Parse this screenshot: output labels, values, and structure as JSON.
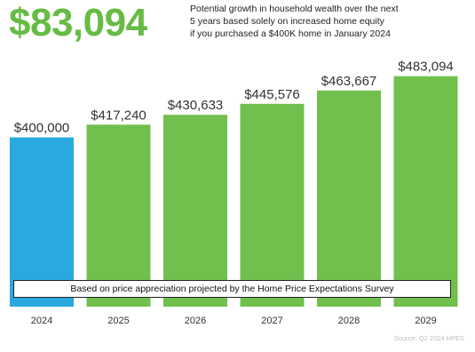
{
  "headline": "$83,094",
  "subtitle_lines": [
    "Potential growth in household wealth over the next",
    "5 years based solely on increased home  equity",
    "if you purchased a $400K home in January 2024"
  ],
  "footnote": "Based on price appreciation projected by the Home Price Expectations Survey",
  "source": "Source: Q2 2024 HPES",
  "colors": {
    "headline": "#66bb44",
    "bar_base": "#2aa9df",
    "bar_projection": "#71c04e",
    "value_label": "#333333",
    "axis_label": "#333333"
  },
  "chart_data": {
    "type": "bar",
    "categories": [
      "2024",
      "2025",
      "2026",
      "2027",
      "2028",
      "2029"
    ],
    "values": [
      400000,
      417240,
      430633,
      445576,
      463667,
      483094
    ],
    "value_labels": [
      "$400,000",
      "$417,240",
      "$430,633",
      "$445,576",
      "$463,667",
      "$483,094"
    ],
    "bar_colors": [
      "#2aa9df",
      "#71c04e",
      "#71c04e",
      "#71c04e",
      "#71c04e",
      "#71c04e"
    ],
    "title": "",
    "xlabel": "",
    "ylabel": "",
    "ylim": [
      170000,
      490000
    ],
    "grid": false,
    "legend": "none"
  }
}
